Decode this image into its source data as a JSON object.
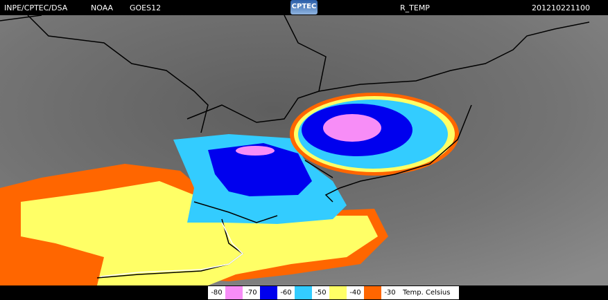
{
  "header": {
    "source": "INPE/CPTEC/DSA",
    "agency": "NOAA",
    "satellite": "GOES12",
    "logo": "CPTEC",
    "product": "R_TEMP",
    "timestamp": "201210221100"
  },
  "legend": {
    "thresholds": [
      -80,
      -70,
      -60,
      -50,
      -40,
      -30
    ],
    "colors": [
      "#f78df7",
      "#0000ee",
      "#33ccff",
      "#ffff66",
      "#ff6600"
    ],
    "unit": "Temp. Celsius"
  }
}
